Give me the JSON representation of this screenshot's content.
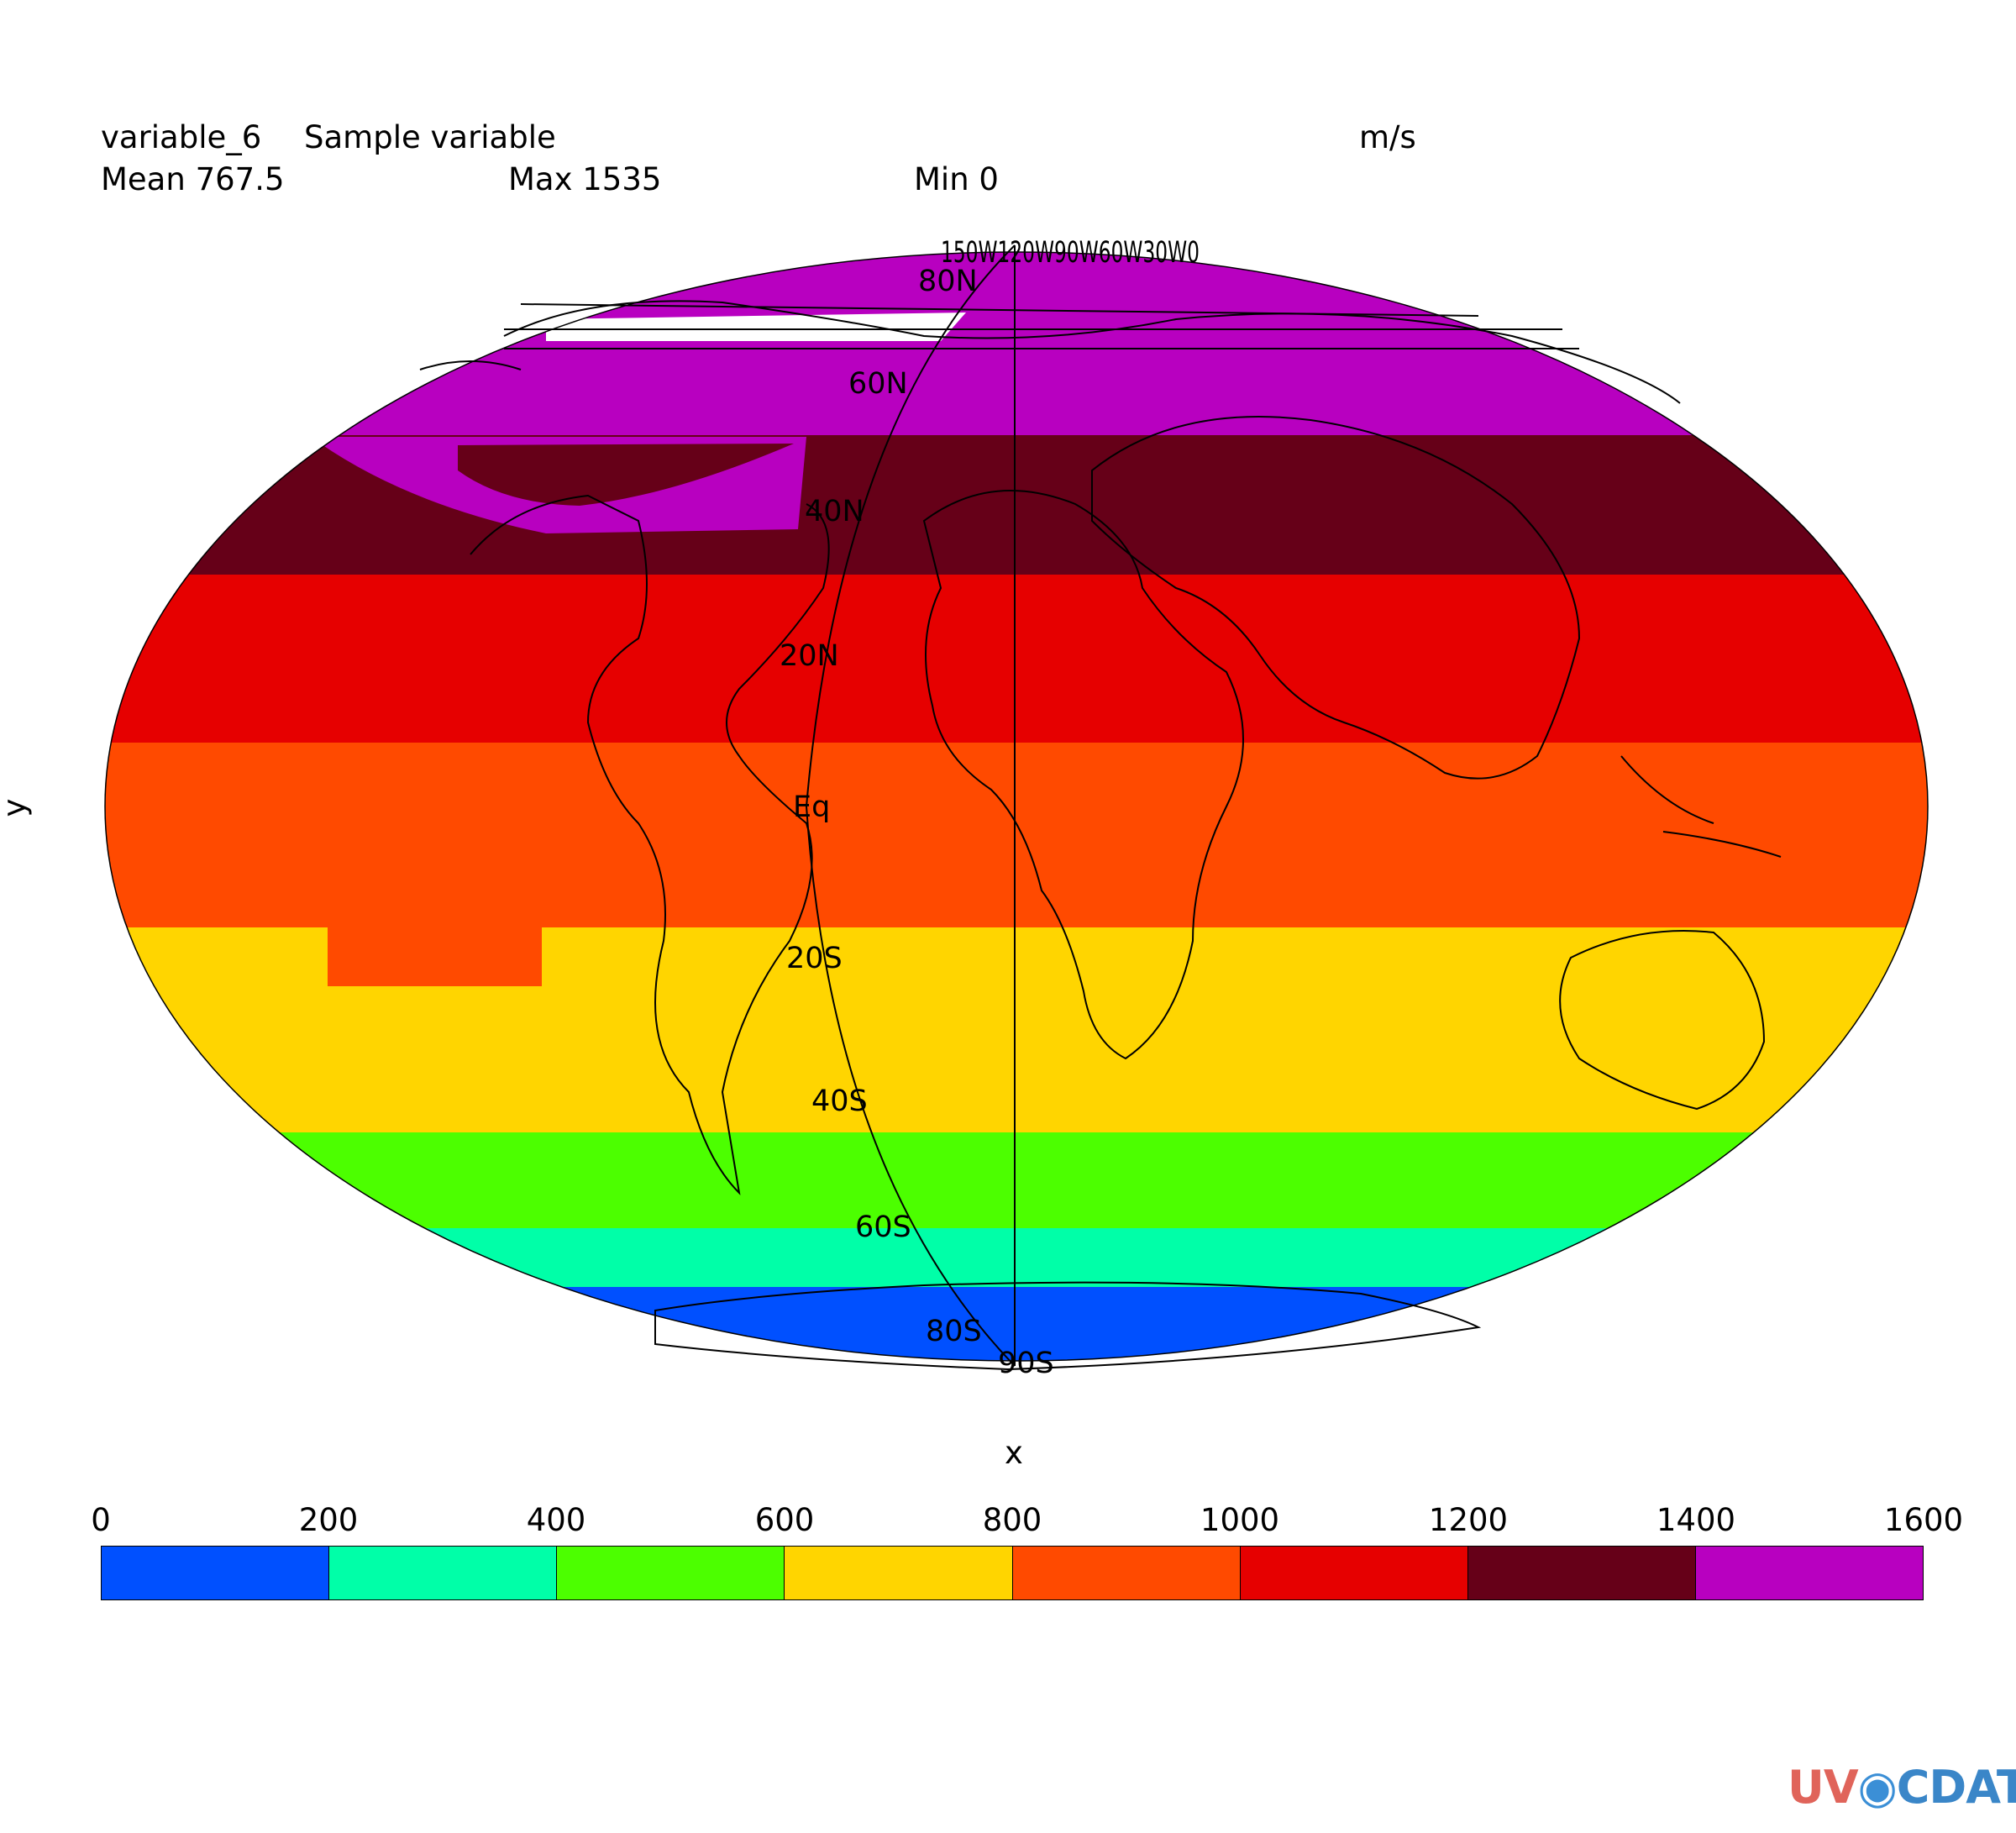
{
  "header": {
    "variable_name": "variable_6",
    "long_name": "Sample variable",
    "units": "m/s",
    "mean": "Mean 767.5",
    "max": "Max 1535",
    "min": "Min 0"
  },
  "axes": {
    "xlabel": "x",
    "ylabel": "y"
  },
  "map": {
    "projection": "Robinson-like (elliptical)",
    "lat_labels": [
      "80N",
      "60N",
      "40N",
      "20N",
      "Eq",
      "20S",
      "40S",
      "60S",
      "80S",
      "90S"
    ],
    "lon_labels_overlap": "150W120W90W60W30W0",
    "band_colors": {
      "0-200": "#0050ff",
      "200-400": "#00ffa8",
      "400-600": "#4cff00",
      "600-800": "#ffd500",
      "800-1000": "#ff4a00",
      "1000-1200": "#e60000",
      "1200-1400": "#660018",
      "1400-1600": "#b800c0"
    }
  },
  "colorbar": {
    "ticks": [
      "0",
      "200",
      "400",
      "600",
      "800",
      "1000",
      "1200",
      "1400",
      "1600"
    ],
    "colors": [
      "#0050ff",
      "#00ffa8",
      "#4cff00",
      "#ffd500",
      "#ff4a00",
      "#e60000",
      "#660018",
      "#b800c0"
    ]
  },
  "chart_data": {
    "type": "heatmap",
    "title": "variable_6 Sample variable",
    "units": "m/s",
    "levels": [
      0,
      200,
      400,
      600,
      800,
      1000,
      1200,
      1400,
      1600
    ],
    "stats": {
      "mean": 767.5,
      "max": 1535,
      "min": 0
    },
    "xlabel": "x",
    "ylabel": "y",
    "lat_band_values": [
      {
        "lat_range": "90S-80S",
        "level": "0-200"
      },
      {
        "lat_range": "80S-65S",
        "level": "200-400"
      },
      {
        "lat_range": "65S-45S",
        "level": "400-600"
      },
      {
        "lat_range": "45S-20S",
        "level": "600-800"
      },
      {
        "lat_range": "20S-10N",
        "level": "800-1000"
      },
      {
        "lat_range": "10N-35N",
        "level": "1000-1200"
      },
      {
        "lat_range": "35N-55N",
        "level": "1200-1400"
      },
      {
        "lat_range": "55N-90N",
        "level": "1400-1600"
      }
    ]
  },
  "logo": {
    "text_uv": "UV",
    "text_cdat": "CDAT"
  }
}
